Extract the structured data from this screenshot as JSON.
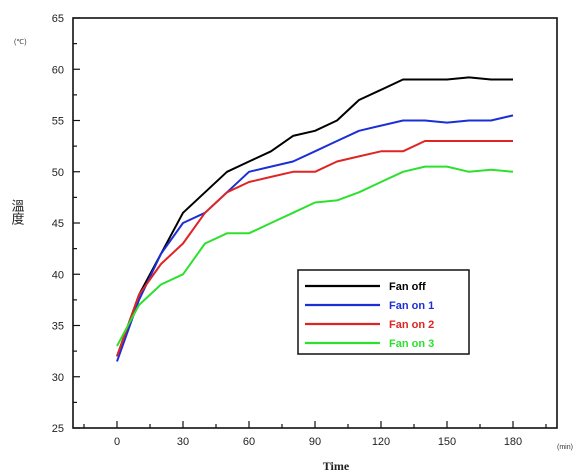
{
  "chart_data": {
    "type": "line",
    "xlabel": "Time",
    "x_unit": "(min)",
    "ylabel": "溫度",
    "y_unit": "(℃)",
    "xlim": [
      -20,
      200
    ],
    "ylim": [
      25,
      65
    ],
    "x_ticks": [
      0,
      30,
      60,
      90,
      120,
      150,
      180
    ],
    "y_ticks": [
      25,
      30,
      35,
      40,
      45,
      50,
      55,
      60,
      65
    ],
    "grid": false,
    "legend_position": "center-right",
    "series": [
      {
        "name": "Fan off",
        "color": "#000000",
        "points": [
          [
            0,
            32
          ],
          [
            10,
            38
          ],
          [
            20,
            42
          ],
          [
            30,
            46
          ],
          [
            40,
            48
          ],
          [
            50,
            50
          ],
          [
            60,
            51
          ],
          [
            70,
            52
          ],
          [
            80,
            53.5
          ],
          [
            90,
            54
          ],
          [
            100,
            55
          ],
          [
            110,
            57
          ],
          [
            120,
            58
          ],
          [
            130,
            59
          ],
          [
            140,
            59
          ],
          [
            150,
            59
          ],
          [
            160,
            59.2
          ],
          [
            170,
            59
          ],
          [
            180,
            59
          ]
        ]
      },
      {
        "name": "Fan on 1",
        "color": "#1c2fd6",
        "points": [
          [
            0,
            31.5
          ],
          [
            10,
            37.5
          ],
          [
            20,
            42
          ],
          [
            30,
            45
          ],
          [
            40,
            46
          ],
          [
            50,
            48
          ],
          [
            60,
            50
          ],
          [
            70,
            50.5
          ],
          [
            80,
            51
          ],
          [
            90,
            52
          ],
          [
            100,
            53
          ],
          [
            110,
            54
          ],
          [
            120,
            54.5
          ],
          [
            130,
            55
          ],
          [
            140,
            55
          ],
          [
            150,
            54.8
          ],
          [
            160,
            55
          ],
          [
            170,
            55
          ],
          [
            180,
            55.5
          ]
        ]
      },
      {
        "name": "Fan on 2",
        "color": "#e02424",
        "points": [
          [
            0,
            32
          ],
          [
            10,
            38
          ],
          [
            20,
            41
          ],
          [
            30,
            43
          ],
          [
            40,
            46
          ],
          [
            50,
            48
          ],
          [
            60,
            49
          ],
          [
            70,
            49.5
          ],
          [
            80,
            50
          ],
          [
            90,
            50
          ],
          [
            100,
            51
          ],
          [
            110,
            51.5
          ],
          [
            120,
            52
          ],
          [
            130,
            52
          ],
          [
            140,
            53
          ],
          [
            150,
            53
          ],
          [
            160,
            53
          ],
          [
            170,
            53
          ],
          [
            180,
            53
          ]
        ]
      },
      {
        "name": "Fan on 3",
        "color": "#2ee02e",
        "points": [
          [
            0,
            33
          ],
          [
            10,
            37
          ],
          [
            20,
            39
          ],
          [
            30,
            40
          ],
          [
            40,
            43
          ],
          [
            50,
            44
          ],
          [
            60,
            44
          ],
          [
            70,
            45
          ],
          [
            80,
            46
          ],
          [
            90,
            47
          ],
          [
            100,
            47.2
          ],
          [
            110,
            48
          ],
          [
            120,
            49
          ],
          [
            130,
            50
          ],
          [
            140,
            50.5
          ],
          [
            150,
            50.5
          ],
          [
            160,
            50
          ],
          [
            170,
            50.2
          ],
          [
            180,
            50
          ]
        ]
      }
    ]
  }
}
